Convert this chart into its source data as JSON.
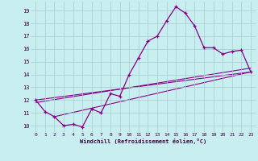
{
  "xlabel": "Windchill (Refroidissement éolien,°C)",
  "background_color": "#c8eef0",
  "line_color": "#880088",
  "grid_color": "#a8ccd0",
  "xlim": [
    -0.5,
    23.5
  ],
  "ylim": [
    9.5,
    19.7
  ],
  "yticks": [
    10,
    11,
    12,
    13,
    14,
    15,
    16,
    17,
    18,
    19
  ],
  "xticks": [
    0,
    1,
    2,
    3,
    4,
    5,
    6,
    7,
    8,
    9,
    10,
    11,
    12,
    13,
    14,
    15,
    16,
    17,
    18,
    19,
    20,
    21,
    22,
    23
  ],
  "curve1_x": [
    0,
    1,
    2,
    3,
    4,
    5,
    6,
    7,
    8,
    9,
    10,
    11,
    12,
    13,
    14,
    15,
    16,
    17,
    18,
    19,
    20,
    21,
    22,
    23
  ],
  "curve1_y": [
    12.0,
    11.1,
    10.7,
    10.0,
    10.1,
    9.9,
    11.3,
    11.0,
    12.5,
    12.3,
    14.0,
    15.3,
    16.6,
    17.0,
    18.2,
    19.3,
    18.8,
    17.8,
    16.1,
    16.1,
    15.6,
    15.8,
    15.9,
    14.2
  ],
  "line1_x": [
    0,
    23
  ],
  "line1_y": [
    12.0,
    14.2
  ],
  "line2_x": [
    0,
    23
  ],
  "line2_y": [
    11.8,
    14.5
  ],
  "line3_x": [
    2,
    23
  ],
  "line3_y": [
    10.7,
    14.2
  ]
}
